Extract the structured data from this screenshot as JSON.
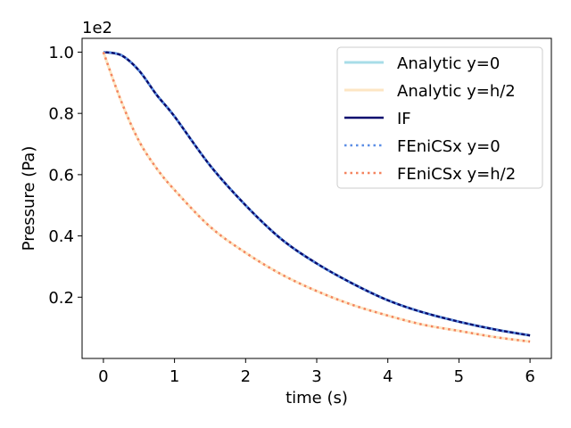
{
  "chart_data": {
    "type": "line",
    "xlabel": "time (s)",
    "ylabel": "Pressure (Pa)",
    "offset_text": "1e2",
    "xlim": [
      -0.3,
      6.3
    ],
    "ylim": [
      0.0,
      1.045
    ],
    "xticks": [
      0,
      1,
      2,
      3,
      4,
      5,
      6
    ],
    "xtick_labels": [
      "0",
      "1",
      "2",
      "3",
      "4",
      "5",
      "6"
    ],
    "yticks": [
      0.2,
      0.4,
      0.6,
      0.8,
      1.0
    ],
    "ytick_labels": [
      "0.2",
      "0.4",
      "0.6",
      "0.8",
      "1.0"
    ],
    "grid": false,
    "legend_position": "top-right",
    "x": [
      0,
      0.25,
      0.5,
      0.75,
      1.0,
      1.5,
      2.0,
      2.5,
      3.0,
      3.5,
      4.0,
      4.5,
      5.0,
      5.5,
      6.0
    ],
    "series": [
      {
        "name": "Analytic y=0",
        "color": "#a8dde8",
        "style": "solid",
        "values": [
          1.0,
          0.99,
          0.94,
          0.86,
          0.79,
          0.63,
          0.5,
          0.39,
          0.31,
          0.245,
          0.19,
          0.15,
          0.12,
          0.095,
          0.075
        ]
      },
      {
        "name": "Analytic y=h/2",
        "color": "#fde6c4",
        "style": "solid",
        "values": [
          1.0,
          0.84,
          0.71,
          0.62,
          0.55,
          0.43,
          0.345,
          0.275,
          0.22,
          0.175,
          0.14,
          0.11,
          0.09,
          0.07,
          0.055
        ]
      },
      {
        "name": "IF",
        "color": "#0a0a6e",
        "style": "solid",
        "values": [
          1.0,
          0.99,
          0.94,
          0.86,
          0.79,
          0.63,
          0.5,
          0.39,
          0.31,
          0.245,
          0.19,
          0.15,
          0.12,
          0.095,
          0.075
        ]
      },
      {
        "name": "FEniCSx y=0",
        "color": "#5b8ee6",
        "style": "dotted",
        "values": [
          1.0,
          0.99,
          0.94,
          0.86,
          0.79,
          0.63,
          0.5,
          0.39,
          0.31,
          0.245,
          0.19,
          0.15,
          0.12,
          0.095,
          0.075
        ]
      },
      {
        "name": "FEniCSx y=h/2",
        "color": "#f4835e",
        "style": "dotted",
        "values": [
          1.0,
          0.84,
          0.71,
          0.62,
          0.55,
          0.43,
          0.345,
          0.275,
          0.22,
          0.175,
          0.14,
          0.11,
          0.09,
          0.07,
          0.055
        ]
      }
    ]
  }
}
